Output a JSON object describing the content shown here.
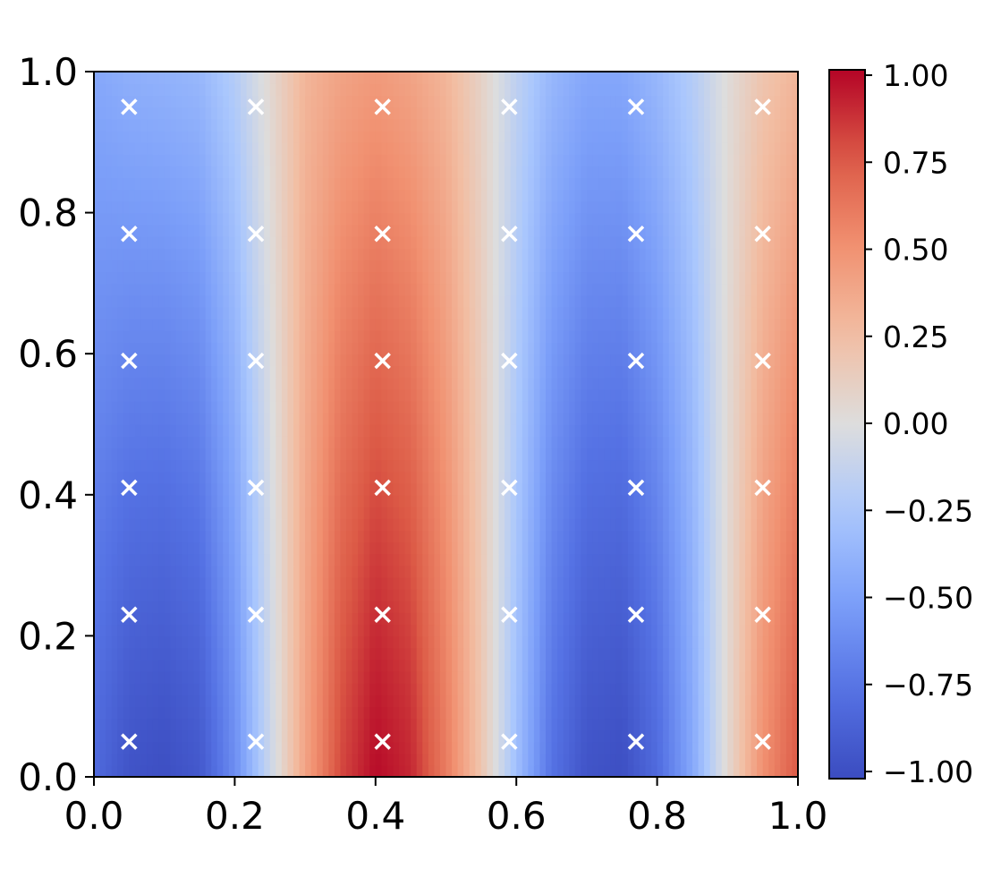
{
  "chart_data": {
    "type": "heatmap",
    "title": "",
    "xlabel": "",
    "ylabel": "",
    "xlim": [
      0.0,
      1.0
    ],
    "ylim": [
      0.0,
      1.0
    ],
    "x_ticks": [
      "0.0",
      "0.2",
      "0.4",
      "0.6",
      "0.8",
      "1.0"
    ],
    "y_ticks": [
      "0.0",
      "0.2",
      "0.4",
      "0.6",
      "0.8",
      "1.0"
    ],
    "colormap": "coolwarm",
    "colorbar": {
      "vmin": -1.0,
      "vmax": 1.0,
      "ticks": [
        -1.0,
        -0.75,
        -0.5,
        -0.25,
        0.0,
        0.25,
        0.5,
        0.75,
        1.0
      ],
      "tick_labels": [
        "−1.00",
        "−0.75",
        "−0.50",
        "−0.25",
        "0.00",
        "0.25",
        "0.50",
        "0.75",
        "1.00"
      ]
    },
    "field": {
      "description_values": "color value varies mainly with x; approximately sin-like in x with slight y falloff",
      "x_samples": [
        0.0,
        0.05,
        0.1,
        0.15,
        0.2,
        0.25,
        0.3,
        0.35,
        0.4,
        0.45,
        0.5,
        0.55,
        0.6,
        0.65,
        0.7,
        0.75,
        0.8,
        0.85,
        0.9,
        0.95,
        1.0
      ],
      "values_at_y0": [
        -0.8,
        -0.95,
        -0.98,
        -0.92,
        -0.6,
        -0.1,
        0.4,
        0.8,
        0.98,
        0.9,
        0.6,
        0.2,
        -0.3,
        -0.75,
        -0.95,
        -0.98,
        -0.8,
        -0.45,
        0.05,
        0.5,
        0.75
      ],
      "values_at_y1": [
        -0.45,
        -0.4,
        -0.38,
        -0.35,
        -0.2,
        0.05,
        0.3,
        0.4,
        0.45,
        0.4,
        0.3,
        0.1,
        -0.15,
        -0.35,
        -0.45,
        -0.45,
        -0.35,
        -0.2,
        0.02,
        0.2,
        0.3
      ]
    },
    "markers": {
      "symbol": "x",
      "color": "#ffffff",
      "x": [
        0.05,
        0.23,
        0.41,
        0.59,
        0.77,
        0.95
      ],
      "y": [
        0.05,
        0.23,
        0.41,
        0.59,
        0.77,
        0.95
      ]
    }
  }
}
